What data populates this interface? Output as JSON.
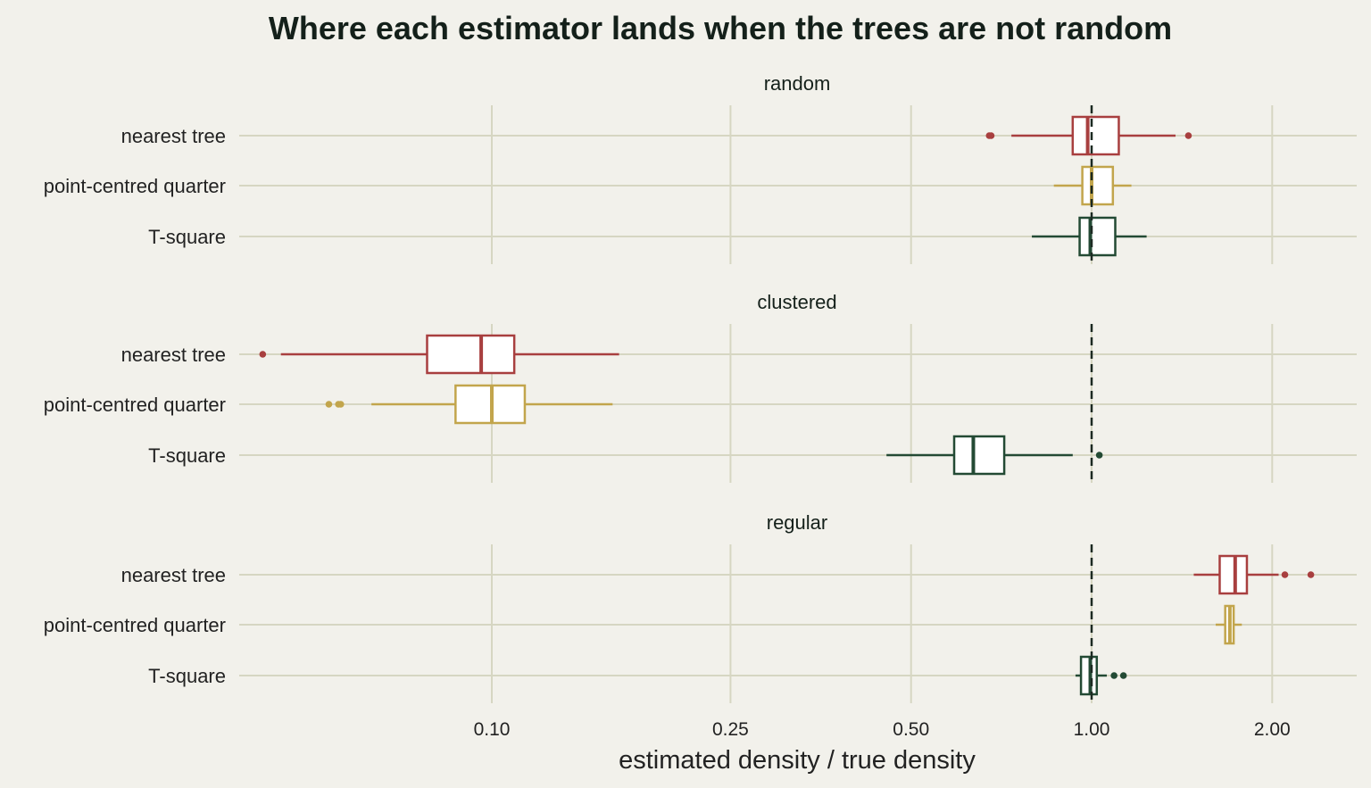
{
  "chart_data": {
    "type": "boxplot",
    "title": "Where each estimator lands when the trees are not random",
    "xlabel": "estimated density / true density",
    "ylabel": "",
    "x_scale": "log",
    "xlim": [
      0.0325,
      3.0
    ],
    "x_ticks": [
      0.1,
      0.25,
      0.5,
      1.0,
      2.0
    ],
    "x_tick_labels": [
      "0.10",
      "0.25",
      "0.50",
      "1.00",
      "2.00"
    ],
    "reference_line": 1.0,
    "grid": true,
    "legend": "none",
    "categories": [
      "nearest tree",
      "point-centred quarter",
      "T-square"
    ],
    "series_colors": {
      "nearest tree": "#a83f3f",
      "point-centred quarter": "#c2a54c",
      "T-square": "#234a34"
    },
    "facets": [
      {
        "label": "random",
        "boxes": [
          {
            "estimator": "nearest tree",
            "whisker_low": 0.735,
            "q1": 0.93,
            "median": 0.985,
            "q3": 1.11,
            "whisker_high": 1.38,
            "outliers": [
              0.675,
              0.68,
              1.45
            ]
          },
          {
            "estimator": "point-centred quarter",
            "whisker_low": 0.865,
            "q1": 0.965,
            "median": 1.0,
            "q3": 1.085,
            "whisker_high": 1.165,
            "outliers": []
          },
          {
            "estimator": "T-square",
            "whisker_low": 0.795,
            "q1": 0.955,
            "median": 0.995,
            "q3": 1.095,
            "whisker_high": 1.235,
            "outliers": []
          }
        ]
      },
      {
        "label": "clustered",
        "boxes": [
          {
            "estimator": "nearest tree",
            "whisker_low": 0.0445,
            "q1": 0.078,
            "median": 0.096,
            "q3": 0.109,
            "whisker_high": 0.163,
            "outliers": [
              0.0415
            ]
          },
          {
            "estimator": "point-centred quarter",
            "whisker_low": 0.063,
            "q1": 0.087,
            "median": 0.1,
            "q3": 0.1135,
            "whisker_high": 0.159,
            "outliers": [
              0.0535,
              0.0555,
              0.056
            ]
          },
          {
            "estimator": "T-square",
            "whisker_low": 0.455,
            "q1": 0.59,
            "median": 0.635,
            "q3": 0.715,
            "whisker_high": 0.93,
            "outliers": [
              1.03
            ]
          }
        ]
      },
      {
        "label": "regular",
        "boxes": [
          {
            "estimator": "nearest tree",
            "whisker_low": 1.48,
            "q1": 1.635,
            "median": 1.735,
            "q3": 1.815,
            "whisker_high": 2.05,
            "outliers": [
              2.1,
              2.32
            ]
          },
          {
            "estimator": "point-centred quarter",
            "whisker_low": 1.61,
            "q1": 1.67,
            "median": 1.7,
            "q3": 1.725,
            "whisker_high": 1.78,
            "outliers": []
          },
          {
            "estimator": "T-square",
            "whisker_low": 0.94,
            "q1": 0.96,
            "median": 0.995,
            "q3": 1.02,
            "whisker_high": 1.06,
            "outliers": [
              1.09,
              1.13
            ]
          }
        ]
      }
    ]
  }
}
